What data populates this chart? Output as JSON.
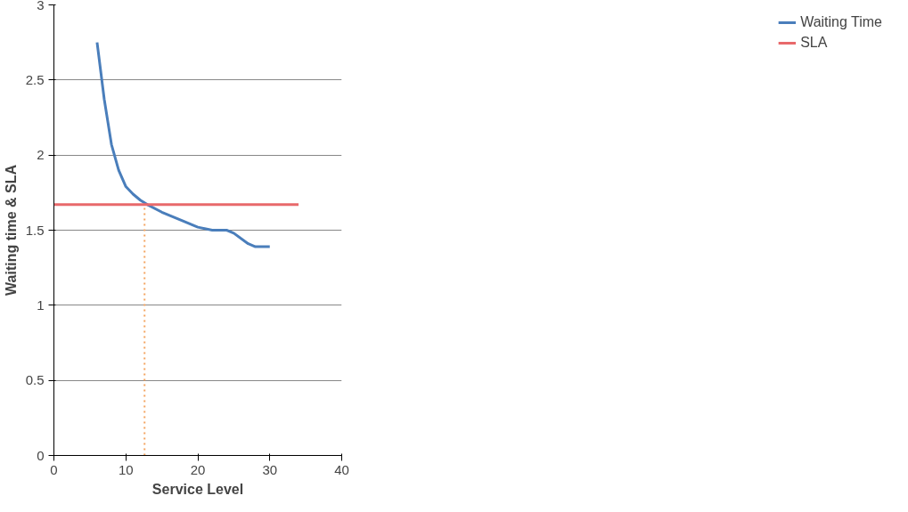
{
  "chart_data": {
    "type": "line",
    "xlabel": "Service Level",
    "ylabel": "Waiting time & SLA",
    "xlim": [
      0,
      40
    ],
    "xticks": [
      0,
      10,
      20,
      30,
      40
    ],
    "ylim": [
      0,
      3
    ],
    "yticks": [
      0,
      0.5,
      1,
      1.5,
      2,
      2.5,
      3
    ],
    "grid": "y",
    "legend": "right",
    "marker": "none",
    "series": [
      {
        "name": "Waiting Time",
        "color": "#4a7ebb",
        "x": [
          6,
          7,
          8,
          9,
          10,
          11,
          12,
          13,
          15,
          18,
          20,
          22,
          24,
          25,
          27,
          28,
          30
        ],
        "values": [
          2.75,
          2.37,
          2.07,
          1.9,
          1.79,
          1.74,
          1.7,
          1.67,
          1.62,
          1.56,
          1.52,
          1.5,
          1.5,
          1.48,
          1.41,
          1.39,
          1.39
        ]
      },
      {
        "name": "SLA",
        "color": "#e8696b",
        "x": [
          0,
          34
        ],
        "values": [
          1.67,
          1.67
        ]
      },
      {
        "color": "#f4a460",
        "x": [
          12.6,
          12.6
        ],
        "values": [
          0,
          1.67
        ],
        "line_style": "dotted"
      }
    ]
  }
}
